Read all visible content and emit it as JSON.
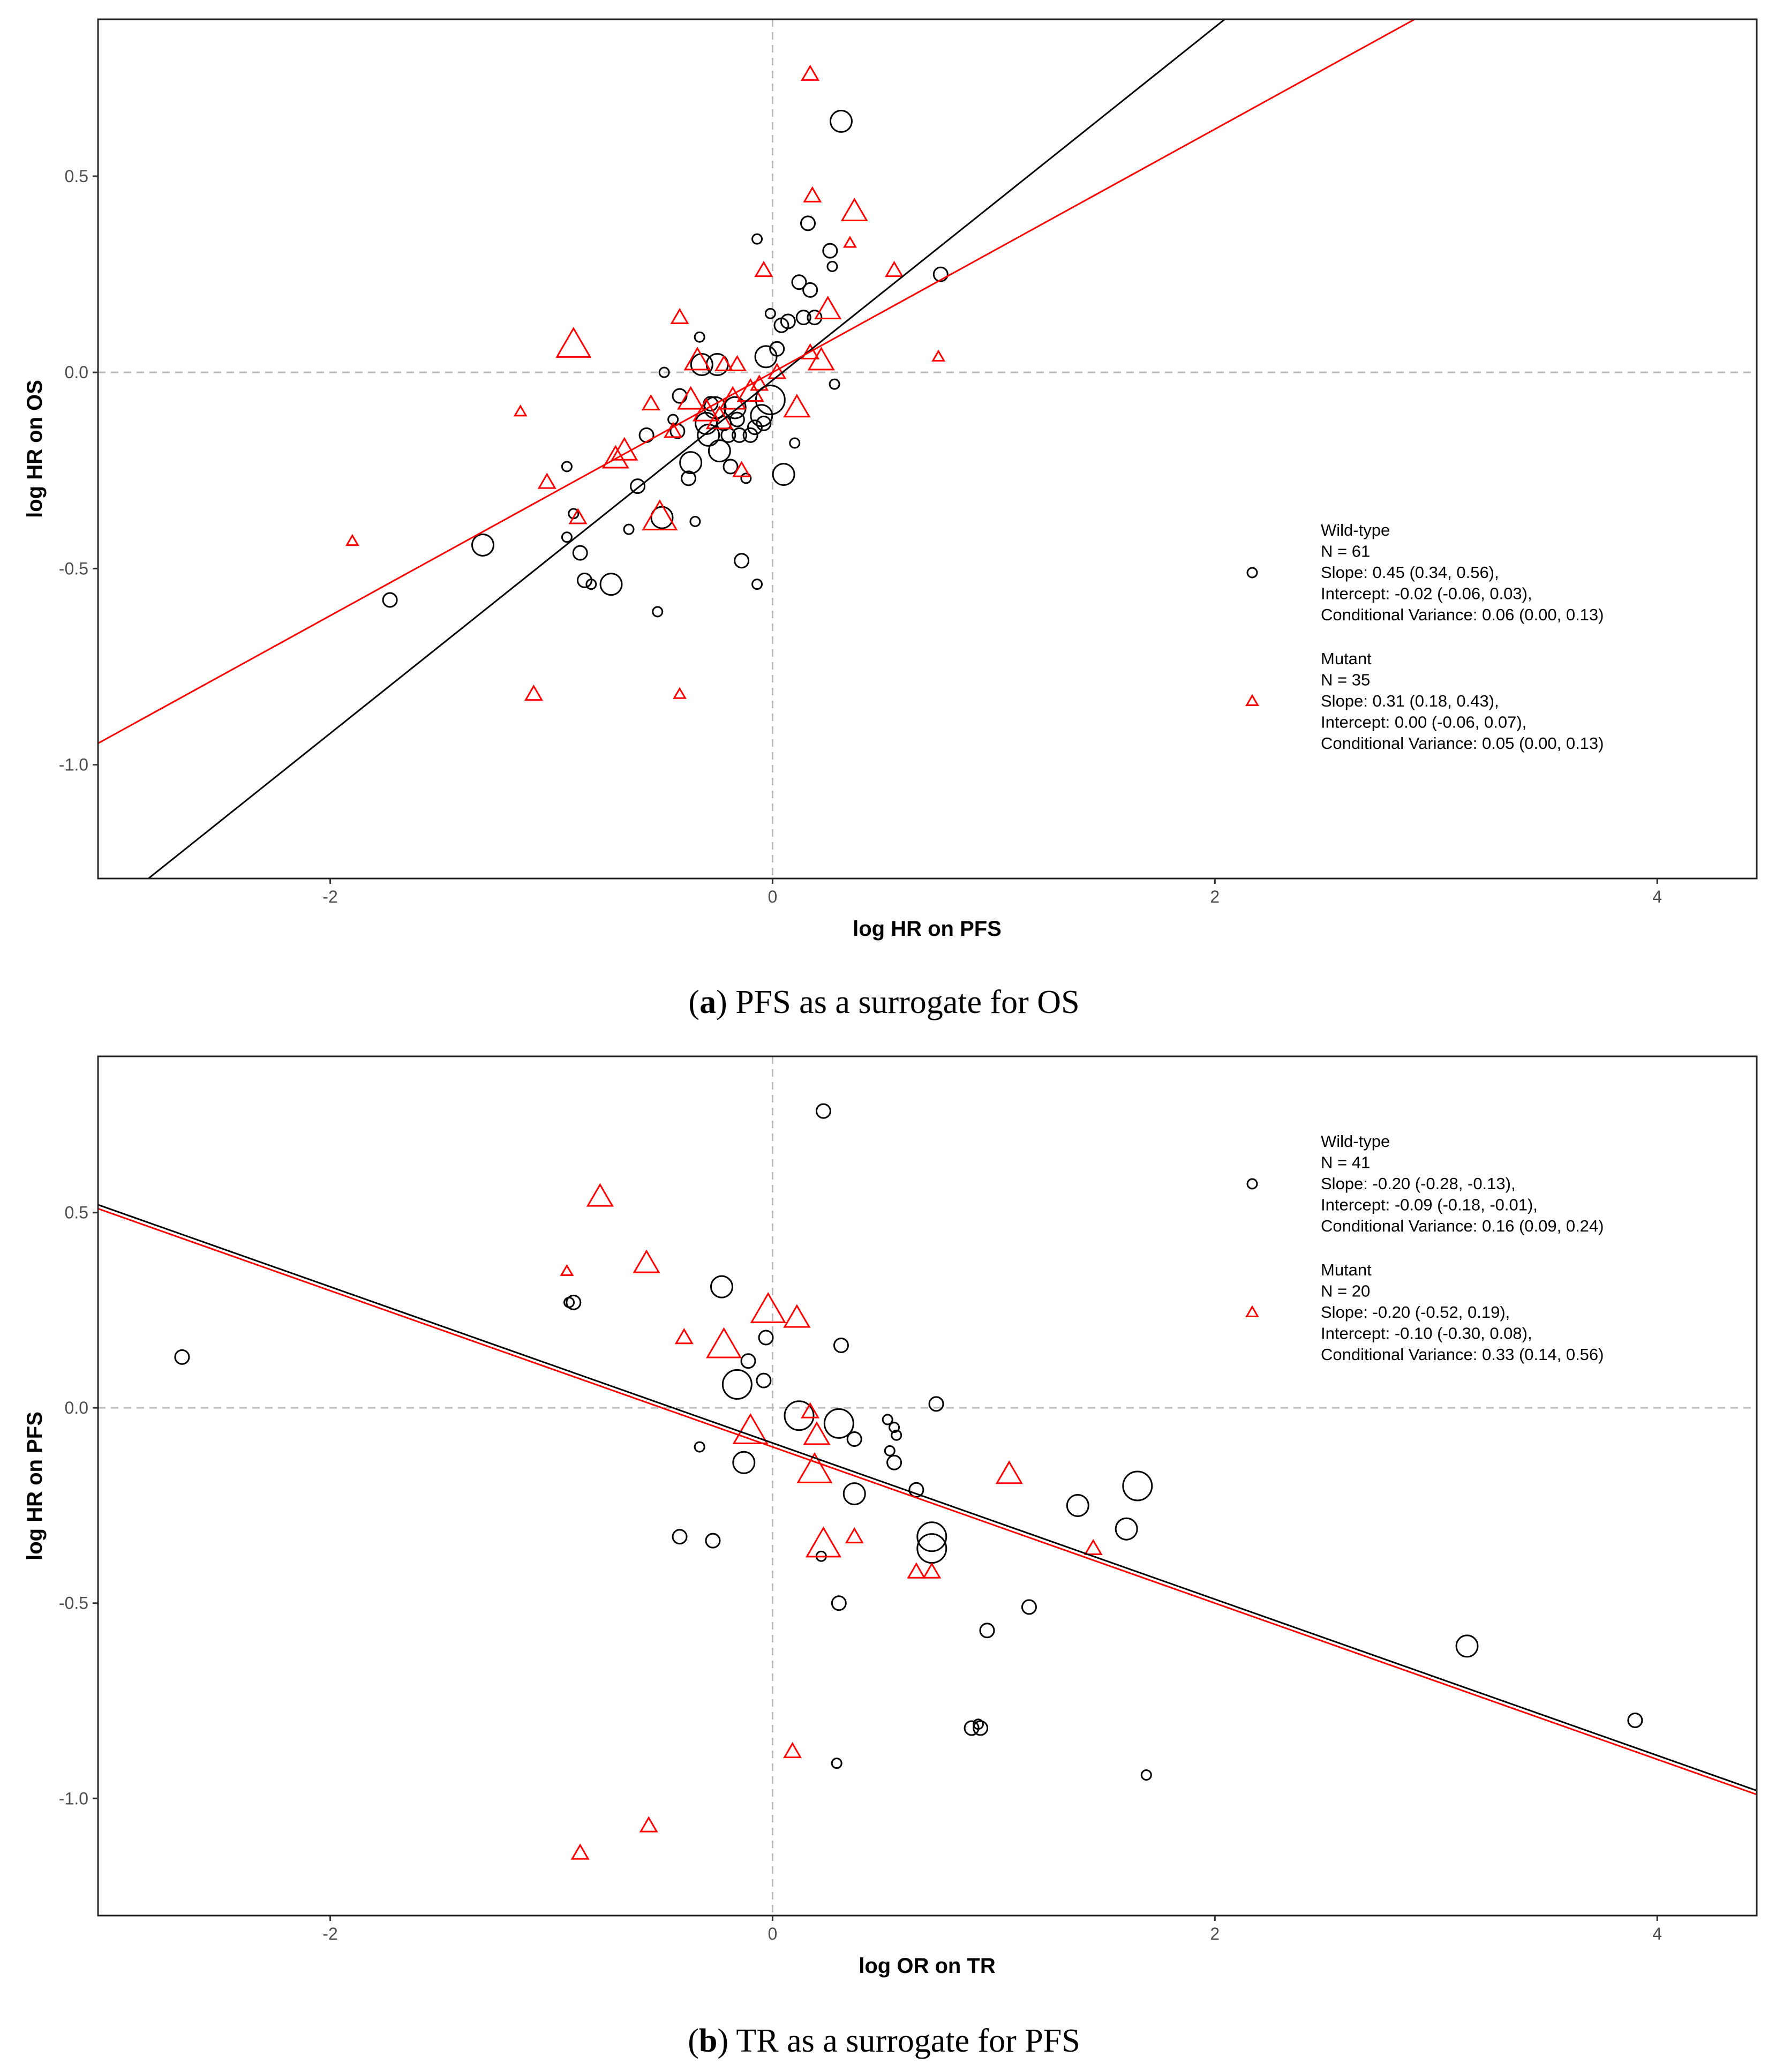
{
  "colors": {
    "wildtype": "#000000",
    "mutant": "#ff0000",
    "refline": "#bbbbbb"
  },
  "chart_data": [
    {
      "type": "scatter",
      "panel": "a",
      "caption_label": "a",
      "caption_text": ") PFS as a surrogate for OS",
      "xlabel": "log HR on PFS",
      "ylabel": "log HR on OS",
      "xlim": [
        -3.05,
        4.45
      ],
      "ylim": [
        -1.29,
        0.9
      ],
      "xticks": [
        -2,
        0,
        2,
        4
      ],
      "yticks": [
        0.5,
        0.0,
        -0.5,
        -1.0
      ],
      "xtick_labels": [
        "-2",
        "0",
        "2",
        "4"
      ],
      "ytick_labels": [
        "0.5",
        "0.0",
        "-0.5",
        "-1.0"
      ],
      "legend_position": "right",
      "series": [
        {
          "name": "Wild-type",
          "marker": "circle",
          "color": "#000000",
          "legend": [
            "Wild-type",
            "N = 61",
            "Slope: 0.45 (0.34, 0.56),",
            "Intercept: -0.02 (-0.06, 0.03),",
            "Conditional Variance: 0.06 (0.00, 0.13)"
          ],
          "fit": {
            "slope": 0.45,
            "intercept": -0.02
          },
          "points": [
            [
              -1.73,
              -0.58,
              2
            ],
            [
              -1.31,
              -0.44,
              3
            ],
            [
              -0.93,
              -0.24,
              1
            ],
            [
              -0.9,
              -0.36,
              1
            ],
            [
              -0.93,
              -0.42,
              1
            ],
            [
              -0.87,
              -0.46,
              2
            ],
            [
              -0.85,
              -0.53,
              2
            ],
            [
              -0.82,
              -0.54,
              1
            ],
            [
              -0.73,
              -0.54,
              3
            ],
            [
              -0.65,
              -0.4,
              1
            ],
            [
              -0.61,
              -0.29,
              2
            ],
            [
              -0.57,
              -0.16,
              2
            ],
            [
              -0.52,
              -0.61,
              1
            ],
            [
              -0.5,
              -0.37,
              3
            ],
            [
              -0.45,
              -0.12,
              1
            ],
            [
              -0.43,
              -0.15,
              2
            ],
            [
              -0.38,
              -0.27,
              2
            ],
            [
              -0.37,
              -0.23,
              3
            ],
            [
              -0.35,
              -0.38,
              1
            ],
            [
              -0.33,
              0.09,
              1
            ],
            [
              -0.32,
              0.02,
              3
            ],
            [
              -0.3,
              -0.13,
              3
            ],
            [
              -0.29,
              -0.16,
              3
            ],
            [
              -0.26,
              -0.09,
              3
            ],
            [
              -0.25,
              0.02,
              3
            ],
            [
              -0.24,
              -0.2,
              3
            ],
            [
              -0.22,
              -0.13,
              2
            ],
            [
              -0.2,
              -0.16,
              2
            ],
            [
              -0.19,
              -0.24,
              2
            ],
            [
              -0.17,
              -0.09,
              3
            ],
            [
              -0.16,
              -0.12,
              2
            ],
            [
              -0.15,
              -0.16,
              2
            ],
            [
              -0.14,
              -0.48,
              2
            ],
            [
              -0.12,
              -0.27,
              1
            ],
            [
              -0.1,
              -0.16,
              2
            ],
            [
              -0.08,
              -0.14,
              2
            ],
            [
              -0.07,
              -0.54,
              1
            ],
            [
              -0.07,
              0.34,
              1
            ],
            [
              -0.05,
              -0.11,
              3
            ],
            [
              -0.04,
              -0.13,
              2
            ],
            [
              -0.03,
              0.04,
              3
            ],
            [
              -0.01,
              0.15,
              1
            ],
            [
              -0.01,
              -0.07,
              4
            ],
            [
              0.02,
              0.06,
              2
            ],
            [
              0.04,
              0.12,
              2
            ],
            [
              0.05,
              -0.26,
              3
            ],
            [
              0.07,
              0.13,
              2
            ],
            [
              0.1,
              -0.18,
              1
            ],
            [
              0.12,
              0.23,
              2
            ],
            [
              0.14,
              0.14,
              2
            ],
            [
              0.16,
              0.38,
              2
            ],
            [
              0.17,
              0.21,
              2
            ],
            [
              0.19,
              0.14,
              2
            ],
            [
              0.26,
              0.31,
              2
            ],
            [
              0.27,
              0.27,
              1
            ],
            [
              0.28,
              -0.03,
              1
            ],
            [
              0.31,
              0.64,
              3
            ],
            [
              0.76,
              0.25,
              2
            ],
            [
              -0.49,
              0.0,
              1
            ],
            [
              -0.28,
              -0.08,
              2
            ],
            [
              -0.42,
              -0.06,
              2
            ]
          ]
        },
        {
          "name": "Mutant",
          "marker": "triangle",
          "color": "#ff0000",
          "legend": [
            "Mutant",
            "N = 35",
            "Slope: 0.31 (0.18, 0.43),",
            "Intercept: 0.00 (-0.06, 0.07),",
            "Conditional Variance: 0.05 (0.00, 0.13)"
          ],
          "fit": {
            "slope": 0.31,
            "intercept": 0.0
          },
          "points": [
            [
              -1.9,
              -0.43,
              1
            ],
            [
              -1.14,
              -0.1,
              1
            ],
            [
              -1.08,
              -0.82,
              2
            ],
            [
              -1.02,
              -0.28,
              2
            ],
            [
              -0.9,
              0.07,
              4
            ],
            [
              -0.88,
              -0.37,
              2
            ],
            [
              -0.71,
              -0.22,
              3
            ],
            [
              -0.67,
              -0.2,
              3
            ],
            [
              -0.51,
              -0.37,
              4
            ],
            [
              -0.42,
              0.14,
              2
            ],
            [
              -0.42,
              -0.82,
              1
            ],
            [
              -0.37,
              -0.07,
              3
            ],
            [
              -0.34,
              0.03,
              3
            ],
            [
              -0.3,
              -0.1,
              3
            ],
            [
              -0.22,
              0.02,
              2
            ],
            [
              -0.18,
              -0.07,
              3
            ],
            [
              -0.16,
              0.02,
              2
            ],
            [
              -0.14,
              -0.25,
              2
            ],
            [
              -0.1,
              -0.05,
              3
            ],
            [
              -0.06,
              -0.03,
              2
            ],
            [
              -0.04,
              0.26,
              2
            ],
            [
              0.11,
              -0.09,
              3
            ],
            [
              0.17,
              0.05,
              2
            ],
            [
              0.17,
              0.76,
              2
            ],
            [
              0.18,
              0.45,
              2
            ],
            [
              0.22,
              0.03,
              3
            ],
            [
              0.25,
              0.16,
              3
            ],
            [
              0.37,
              0.41,
              3
            ],
            [
              0.35,
              0.33,
              1
            ],
            [
              0.55,
              0.26,
              2
            ],
            [
              0.75,
              0.04,
              1
            ],
            [
              -0.55,
              -0.08,
              2
            ],
            [
              -0.24,
              -0.12,
              3
            ],
            [
              0.02,
              0.0,
              2
            ],
            [
              -0.45,
              -0.15,
              2
            ]
          ]
        }
      ]
    },
    {
      "type": "scatter",
      "panel": "b",
      "caption_label": "b",
      "caption_text": ") TR as a surrogate for PFS",
      "xlabel": "log OR on TR",
      "ylabel": "log HR on PFS",
      "xlim": [
        -3.05,
        4.45
      ],
      "ylim": [
        -1.3,
        0.9
      ],
      "xticks": [
        -2,
        0,
        2,
        4
      ],
      "yticks": [
        0.5,
        0.0,
        -0.5,
        -1.0
      ],
      "xtick_labels": [
        "-2",
        "0",
        "2",
        "4"
      ],
      "ytick_labels": [
        "0.5",
        "0.0",
        "-0.5",
        "-1.0"
      ],
      "legend_position": "top-right",
      "series": [
        {
          "name": "Wild-type",
          "marker": "circle",
          "color": "#000000",
          "legend": [
            "Wild-type",
            "N = 41",
            "Slope: -0.20 (-0.28, -0.13),",
            "Intercept: -0.09 (-0.18, -0.01),",
            "Conditional Variance: 0.16 (0.09, 0.24)"
          ],
          "fit": {
            "slope": -0.2,
            "intercept": -0.09
          },
          "points": [
            [
              -2.67,
              0.13,
              2
            ],
            [
              -0.92,
              0.27,
              1
            ],
            [
              -0.9,
              0.27,
              2
            ],
            [
              -0.42,
              -0.33,
              2
            ],
            [
              -0.33,
              -0.1,
              1
            ],
            [
              -0.27,
              -0.34,
              2
            ],
            [
              -0.23,
              0.31,
              3
            ],
            [
              -0.13,
              -0.14,
              3
            ],
            [
              -0.11,
              0.12,
              2
            ],
            [
              -0.16,
              0.06,
              4
            ],
            [
              -0.04,
              0.07,
              2
            ],
            [
              -0.03,
              0.18,
              2
            ],
            [
              0.12,
              -0.02,
              4
            ],
            [
              0.23,
              0.76,
              2
            ],
            [
              0.22,
              -0.38,
              1
            ],
            [
              0.29,
              -0.91,
              1
            ],
            [
              0.3,
              -0.5,
              2
            ],
            [
              0.31,
              0.16,
              2
            ],
            [
              0.3,
              -0.04,
              4
            ],
            [
              0.37,
              -0.08,
              2
            ],
            [
              0.37,
              -0.22,
              3
            ],
            [
              0.52,
              -0.03,
              1
            ],
            [
              0.53,
              -0.11,
              1
            ],
            [
              0.55,
              -0.05,
              1
            ],
            [
              0.55,
              -0.14,
              2
            ],
            [
              0.56,
              -0.07,
              1
            ],
            [
              0.65,
              -0.21,
              2
            ],
            [
              0.72,
              -0.33,
              4
            ],
            [
              0.72,
              -0.36,
              4
            ],
            [
              0.74,
              0.01,
              2
            ],
            [
              0.97,
              -0.57,
              2
            ],
            [
              0.9,
              -0.82,
              2
            ],
            [
              0.94,
              -0.82,
              2
            ],
            [
              0.93,
              -0.81,
              1
            ],
            [
              1.16,
              -0.51,
              2
            ],
            [
              1.38,
              -0.25,
              3
            ],
            [
              1.6,
              -0.31,
              3
            ],
            [
              1.65,
              -0.2,
              4
            ],
            [
              1.69,
              -0.94,
              1
            ],
            [
              3.14,
              -0.61,
              3
            ],
            [
              3.9,
              -0.8,
              2
            ]
          ]
        },
        {
          "name": "Mutant",
          "marker": "triangle",
          "color": "#ff0000",
          "legend": [
            "Mutant",
            "N = 20",
            "Slope: -0.20 (-0.52, 0.19),",
            "Intercept: -0.10 (-0.30, 0.08),",
            "Conditional Variance: 0.33 (0.14, 0.56)"
          ],
          "fit": {
            "slope": -0.2,
            "intercept": -0.1
          },
          "points": [
            [
              -0.93,
              0.35,
              1
            ],
            [
              -0.87,
              -1.14,
              2
            ],
            [
              -0.78,
              0.54,
              3
            ],
            [
              -0.57,
              0.37,
              3
            ],
            [
              -0.56,
              -1.07,
              2
            ],
            [
              -0.4,
              0.18,
              2
            ],
            [
              -0.22,
              0.16,
              4
            ],
            [
              -0.1,
              -0.06,
              4
            ],
            [
              -0.02,
              0.25,
              4
            ],
            [
              0.09,
              -0.88,
              2
            ],
            [
              0.11,
              0.23,
              3
            ],
            [
              0.17,
              -0.01,
              2
            ],
            [
              0.19,
              -0.16,
              4
            ],
            [
              0.2,
              -0.07,
              3
            ],
            [
              0.23,
              -0.35,
              4
            ],
            [
              0.37,
              -0.33,
              2
            ],
            [
              0.65,
              -0.42,
              2
            ],
            [
              0.72,
              -0.42,
              2
            ],
            [
              1.07,
              -0.17,
              3
            ],
            [
              1.45,
              -0.36,
              2
            ]
          ]
        }
      ]
    }
  ]
}
